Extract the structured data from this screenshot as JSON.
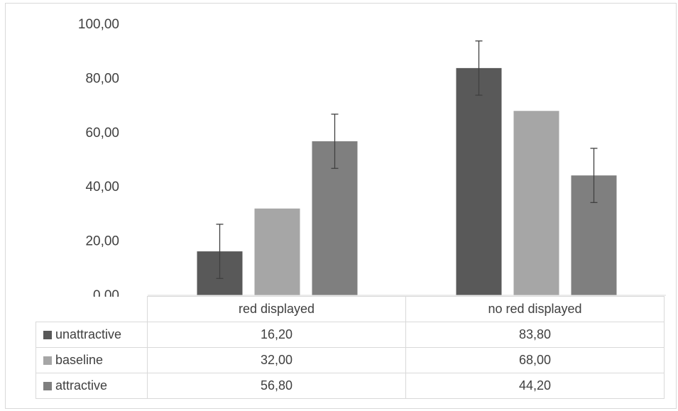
{
  "chart_data": {
    "type": "bar",
    "categories": [
      "red displayed",
      "no red displayed"
    ],
    "series": [
      {
        "name": "unattractive",
        "values": [
          16.2,
          83.8
        ],
        "error": [
          10,
          10
        ],
        "color": "#595959"
      },
      {
        "name": "baseline",
        "values": [
          32.0,
          68.0
        ],
        "error": [
          0,
          0
        ],
        "color": "#a6a6a6"
      },
      {
        "name": "attractive",
        "values": [
          56.8,
          44.2
        ],
        "error": [
          10,
          10
        ],
        "color": "#7f7f7f"
      }
    ],
    "ylim": [
      0,
      100
    ],
    "yticks": [
      "0,00",
      "20,00",
      "40,00",
      "60,00",
      "80,00",
      "100,00"
    ],
    "table": {
      "rows": [
        {
          "label": "unattractive",
          "values": [
            "16,20",
            "83,80"
          ]
        },
        {
          "label": "baseline",
          "values": [
            "32,00",
            "68,00"
          ]
        },
        {
          "label": "attractive",
          "values": [
            "56,80",
            "44,20"
          ]
        }
      ]
    },
    "grid": false,
    "legend": "data table"
  }
}
